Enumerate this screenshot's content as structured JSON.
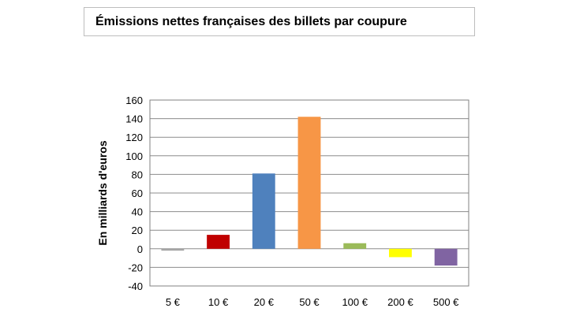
{
  "chart_data": {
    "type": "bar",
    "title": "Émissions nettes françaises des billets par coupure",
    "ylabel": "En milliards d'euros",
    "xlabel": "",
    "categories": [
      "5 €",
      "10 €",
      "20 €",
      "50 €",
      "100 €",
      "200 €",
      "500 €"
    ],
    "values": [
      -2,
      15,
      81,
      142,
      6,
      -9,
      -18
    ],
    "colors": [
      "#a6a6a6",
      "#c00000",
      "#4f81bd",
      "#f79646",
      "#9bbb59",
      "#ffff00",
      "#8064a2"
    ],
    "ylim": [
      -40,
      160
    ],
    "yticks": [
      "160",
      "140",
      "120",
      "100",
      "80",
      "60",
      "40",
      "20",
      "0",
      "-20",
      "-40"
    ],
    "grid": true,
    "legend": "none"
  }
}
